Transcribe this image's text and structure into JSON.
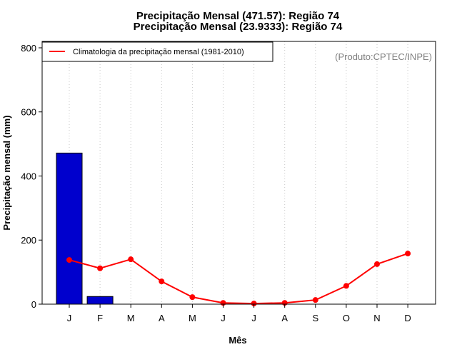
{
  "chart_data": {
    "type": "bar",
    "title": "Precipitação Mensal (471.57): Região 74",
    "subtitle": "Precipitação Mensal (23.9333): Região 74",
    "xlabel": "Mês",
    "ylabel": "Precipitação mensal (mm)",
    "categories": [
      "J",
      "F",
      "M",
      "A",
      "M",
      "J",
      "J",
      "A",
      "S",
      "O",
      "N",
      "D"
    ],
    "ylim": [
      0,
      820
    ],
    "yticks": [
      0,
      200,
      400,
      600,
      800
    ],
    "grid": "vertical dotted",
    "legend_position": "top-left",
    "series": [
      {
        "type": "bar",
        "color": "#0000CD",
        "values": [
          471.57,
          23.9333,
          null,
          null,
          null,
          null,
          null,
          null,
          null,
          null,
          null,
          null
        ]
      },
      {
        "type": "line",
        "name": "Climatologia da precipitação mensal (1981-2010)",
        "color": "#FF0000",
        "values": [
          138,
          112,
          140,
          71,
          22,
          4,
          2,
          4,
          13,
          57,
          125,
          158
        ]
      }
    ],
    "annotation": "(Produto:CPTEC/INPE)"
  }
}
